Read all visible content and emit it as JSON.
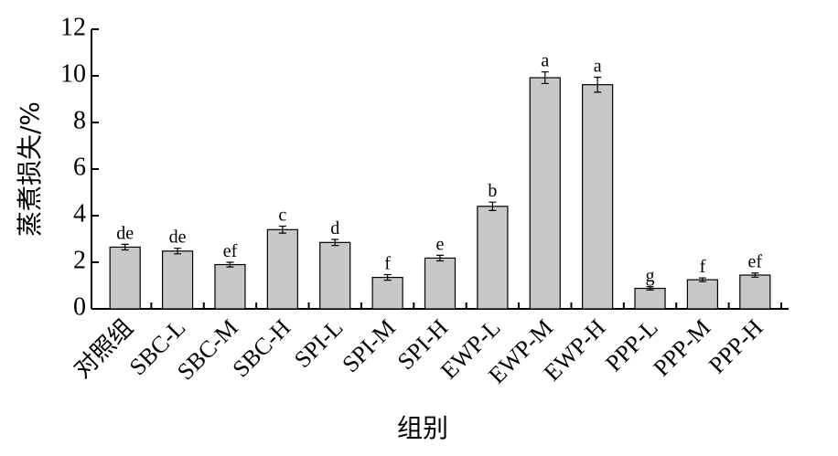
{
  "chart_data": {
    "type": "bar",
    "x_label": "组别",
    "y_label": "蒸煮损失/%",
    "categories": [
      "对照组",
      "SBC-L",
      "SBC-M",
      "SBC-H",
      "SPI-L",
      "SPI-M",
      "SPI-H",
      "EWP-L",
      "EWP-M",
      "EWP-H",
      "PPP-L",
      "PPP-M",
      "PPP-H"
    ],
    "values": [
      2.65,
      2.48,
      1.9,
      3.4,
      2.85,
      1.35,
      2.18,
      4.4,
      9.92,
      9.62,
      0.88,
      1.25,
      1.45
    ],
    "errors": [
      0.12,
      0.12,
      0.1,
      0.15,
      0.13,
      0.12,
      0.12,
      0.18,
      0.25,
      0.32,
      0.07,
      0.08,
      0.09
    ],
    "labels": [
      "de",
      "de",
      "ef",
      "c",
      "d",
      "f",
      "e",
      "b",
      "a",
      "a",
      "g",
      "f",
      "ef"
    ],
    "color": "#c8c8c8",
    "ylim": [
      0,
      12
    ],
    "yticks": [
      0,
      2,
      4,
      6,
      8,
      10,
      12
    ]
  }
}
